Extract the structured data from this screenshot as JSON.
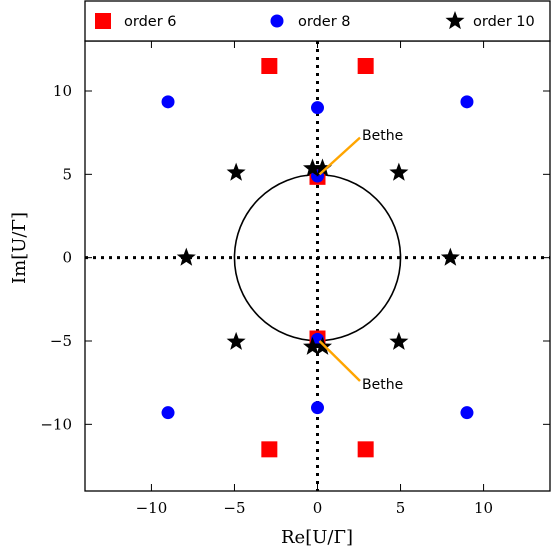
{
  "chart_data": {
    "type": "scatter",
    "xlabel": "Re[U/Γ]",
    "ylabel": "Im[U/Γ]",
    "xlim": [
      -14,
      14
    ],
    "ylim": [
      -14,
      13
    ],
    "xticks": [
      -10,
      -5,
      0,
      5,
      10
    ],
    "yticks": [
      -10,
      -5,
      0,
      5,
      10
    ],
    "xtick_labels": [
      "−10",
      "−5",
      "0",
      "5",
      "10"
    ],
    "ytick_labels": [
      "−10",
      "−5",
      "0",
      "5",
      "10"
    ],
    "grid": false,
    "legend_position": "top, full width, single row",
    "series": [
      {
        "name": "order 6",
        "marker": "square",
        "color": "#ff0000",
        "points": [
          [
            -2.9,
            11.5
          ],
          [
            2.9,
            11.5
          ],
          [
            0,
            4.85
          ],
          [
            0,
            -4.85
          ],
          [
            -2.9,
            -11.5
          ],
          [
            2.9,
            -11.5
          ]
        ]
      },
      {
        "name": "order 8",
        "marker": "circle",
        "color": "#0000ff",
        "points": [
          [
            -9.0,
            9.35
          ],
          [
            0,
            9.0
          ],
          [
            9.0,
            9.35
          ],
          [
            0,
            4.9
          ],
          [
            0,
            -4.9
          ],
          [
            -9.0,
            -9.3
          ],
          [
            0,
            -9.0
          ],
          [
            9.0,
            -9.3
          ]
        ]
      },
      {
        "name": "order 10",
        "marker": "star",
        "color": "#000000",
        "points": [
          [
            -0.3,
            5.35
          ],
          [
            0.3,
            5.35
          ],
          [
            -4.9,
            5.1
          ],
          [
            4.9,
            5.1
          ],
          [
            -7.9,
            0
          ],
          [
            8.0,
            0
          ],
          [
            -4.9,
            -5.05
          ],
          [
            4.9,
            -5.05
          ],
          [
            -0.3,
            -5.35
          ],
          [
            0.3,
            -5.35
          ]
        ]
      }
    ],
    "reference_lines": {
      "circle": {
        "center": [
          0,
          0
        ],
        "radius": 5,
        "color": "#000000",
        "style": "solid"
      },
      "horizontal_axis_line": {
        "y": 0,
        "style": "dotted"
      },
      "vertical_axis_line": {
        "x": 0,
        "style": "dotted"
      }
    },
    "annotations": [
      {
        "text": "Bethe",
        "point": [
          0,
          5
        ],
        "text_at": [
          2.8,
          7.2
        ],
        "arrow_color": "#ffa500"
      },
      {
        "text": "Bethe",
        "point": [
          0,
          -5
        ],
        "text_at": [
          2.8,
          -7.4
        ],
        "arrow_color": "#ffa500"
      }
    ]
  }
}
